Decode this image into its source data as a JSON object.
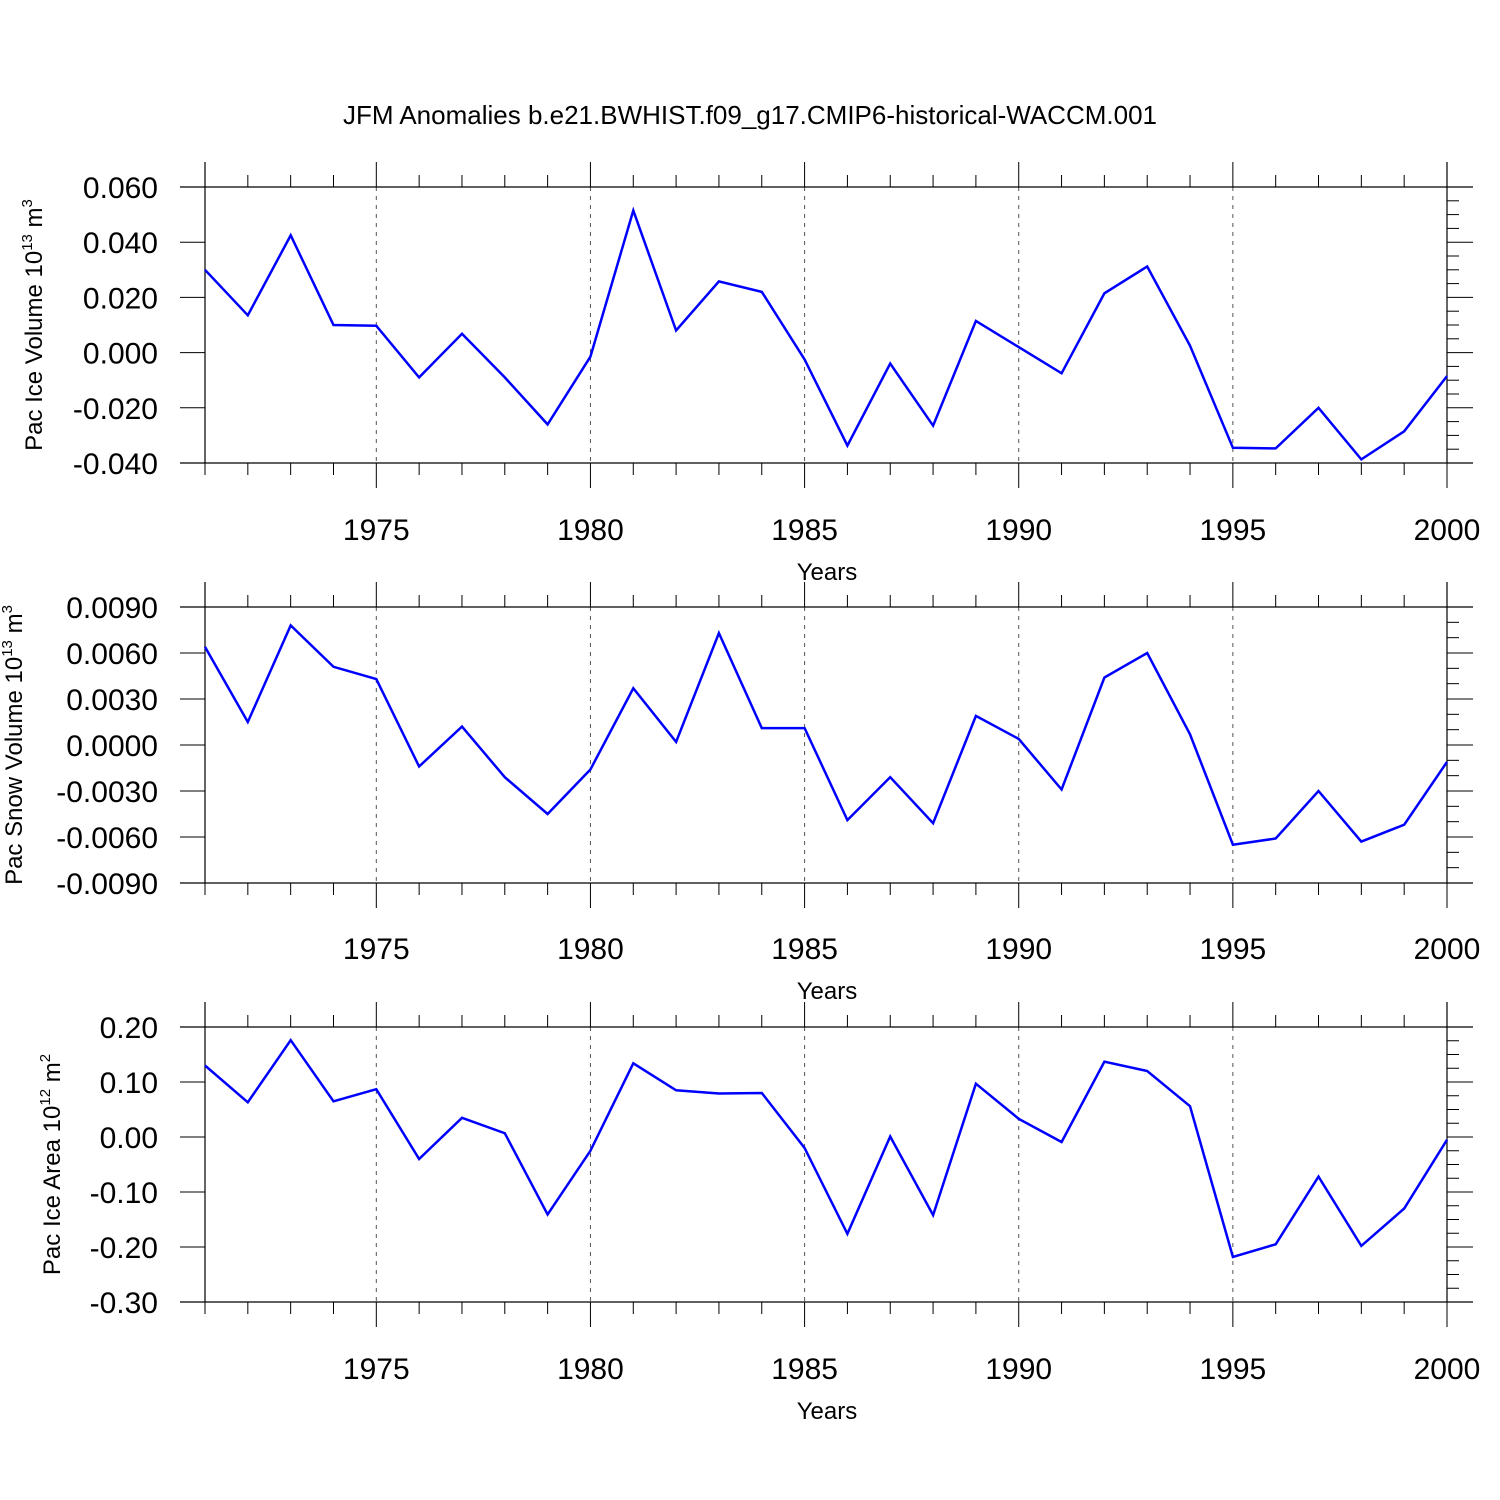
{
  "title": "JFM Anomalies b.e21.BWHIST.f09_g17.CMIP6-historical-WACCM.001",
  "line_color": "#0000ff",
  "chart_data": [
    {
      "type": "line",
      "ylabel_main": "Pac Ice Volume 10",
      "ylabel_exp": "13",
      "ylabel_unit": " m",
      "ylabel_unit_exp": "3",
      "xlabel": "Years",
      "xlim": [
        1971,
        2000
      ],
      "ylim": [
        -0.04,
        0.06
      ],
      "x_ticks": [
        1975,
        1980,
        1985,
        1990,
        1995,
        2000
      ],
      "y_ticks": [
        -0.04,
        -0.02,
        0.0,
        0.02,
        0.04,
        0.06
      ],
      "y_tick_labels": [
        "-0.040",
        "-0.020",
        "0.000",
        "0.020",
        "0.040",
        "0.060"
      ],
      "y_minor_step": 0.005,
      "grid": "vertical dashed at major x ticks",
      "x": [
        1971,
        1972,
        1973,
        1974,
        1975,
        1976,
        1977,
        1978,
        1979,
        1980,
        1981,
        1982,
        1983,
        1984,
        1985,
        1986,
        1987,
        1988,
        1989,
        1990,
        1991,
        1992,
        1993,
        1994,
        1995,
        1996,
        1997,
        1998,
        1999,
        2000
      ],
      "values": [
        0.03,
        0.0135,
        0.0425,
        0.01,
        0.0097,
        -0.009,
        0.0068,
        -0.009,
        -0.026,
        -0.0015,
        0.0515,
        0.008,
        0.0258,
        0.022,
        -0.0025,
        -0.0337,
        -0.004,
        -0.0265,
        0.0115,
        0.002,
        -0.0075,
        0.0215,
        0.0312,
        0.0025,
        -0.0345,
        -0.0347,
        -0.02,
        -0.0387,
        -0.0285,
        -0.0085
      ]
    },
    {
      "type": "line",
      "ylabel_main": "Pac Snow Volume 10",
      "ylabel_exp": "13",
      "ylabel_unit": " m",
      "ylabel_unit_exp": "3",
      "xlabel": "Years",
      "xlim": [
        1971,
        2000
      ],
      "ylim": [
        -0.009,
        0.009
      ],
      "x_ticks": [
        1975,
        1980,
        1985,
        1990,
        1995,
        2000
      ],
      "y_ticks": [
        -0.009,
        -0.006,
        -0.003,
        0.0,
        0.003,
        0.006,
        0.009
      ],
      "y_tick_labels": [
        "-0.0090",
        "-0.0060",
        "-0.0030",
        "0.0000",
        "0.0030",
        "0.0060",
        "0.0090"
      ],
      "y_minor_step": 0.001,
      "grid": "vertical dashed at major x ticks",
      "x": [
        1971,
        1972,
        1973,
        1974,
        1975,
        1976,
        1977,
        1978,
        1979,
        1980,
        1981,
        1982,
        1983,
        1984,
        1985,
        1986,
        1987,
        1988,
        1989,
        1990,
        1991,
        1992,
        1993,
        1994,
        1995,
        1996,
        1997,
        1998,
        1999,
        2000
      ],
      "values": [
        0.0064,
        0.0015,
        0.0078,
        0.0051,
        0.0043,
        -0.0014,
        0.0012,
        -0.0021,
        -0.0045,
        -0.0016,
        0.0037,
        0.0002,
        0.0073,
        0.0011,
        0.0011,
        -0.0049,
        -0.0021,
        -0.0051,
        0.0019,
        0.0004,
        -0.0029,
        0.0044,
        0.006,
        0.0007,
        -0.0065,
        -0.0061,
        -0.003,
        -0.0063,
        -0.0052,
        -0.0011
      ]
    },
    {
      "type": "line",
      "ylabel_main": "Pac Ice Area 10",
      "ylabel_exp": "12",
      "ylabel_unit": " m",
      "ylabel_unit_exp": "2",
      "xlabel": "Years",
      "xlim": [
        1971,
        2000
      ],
      "ylim": [
        -0.3,
        0.2
      ],
      "x_ticks": [
        1975,
        1980,
        1985,
        1990,
        1995,
        2000
      ],
      "y_ticks": [
        -0.3,
        -0.2,
        -0.1,
        0.0,
        0.1,
        0.2
      ],
      "y_tick_labels": [
        "-0.30",
        "-0.20",
        "-0.10",
        "0.00",
        "0.10",
        "0.20"
      ],
      "y_minor_step": 0.025,
      "grid": "vertical dashed at major x ticks",
      "x": [
        1971,
        1972,
        1973,
        1974,
        1975,
        1976,
        1977,
        1978,
        1979,
        1980,
        1981,
        1982,
        1983,
        1984,
        1985,
        1986,
        1987,
        1988,
        1989,
        1990,
        1991,
        1992,
        1993,
        1994,
        1995,
        1996,
        1997,
        1998,
        1999,
        2000
      ],
      "values": [
        0.13,
        0.063,
        0.176,
        0.065,
        0.087,
        -0.04,
        0.035,
        0.007,
        -0.141,
        -0.025,
        0.134,
        0.085,
        0.079,
        0.08,
        -0.02,
        -0.176,
        0.001,
        -0.142,
        0.097,
        0.033,
        -0.009,
        0.137,
        0.12,
        0.056,
        -0.218,
        -0.195,
        -0.072,
        -0.198,
        -0.13,
        -0.005
      ]
    }
  ]
}
